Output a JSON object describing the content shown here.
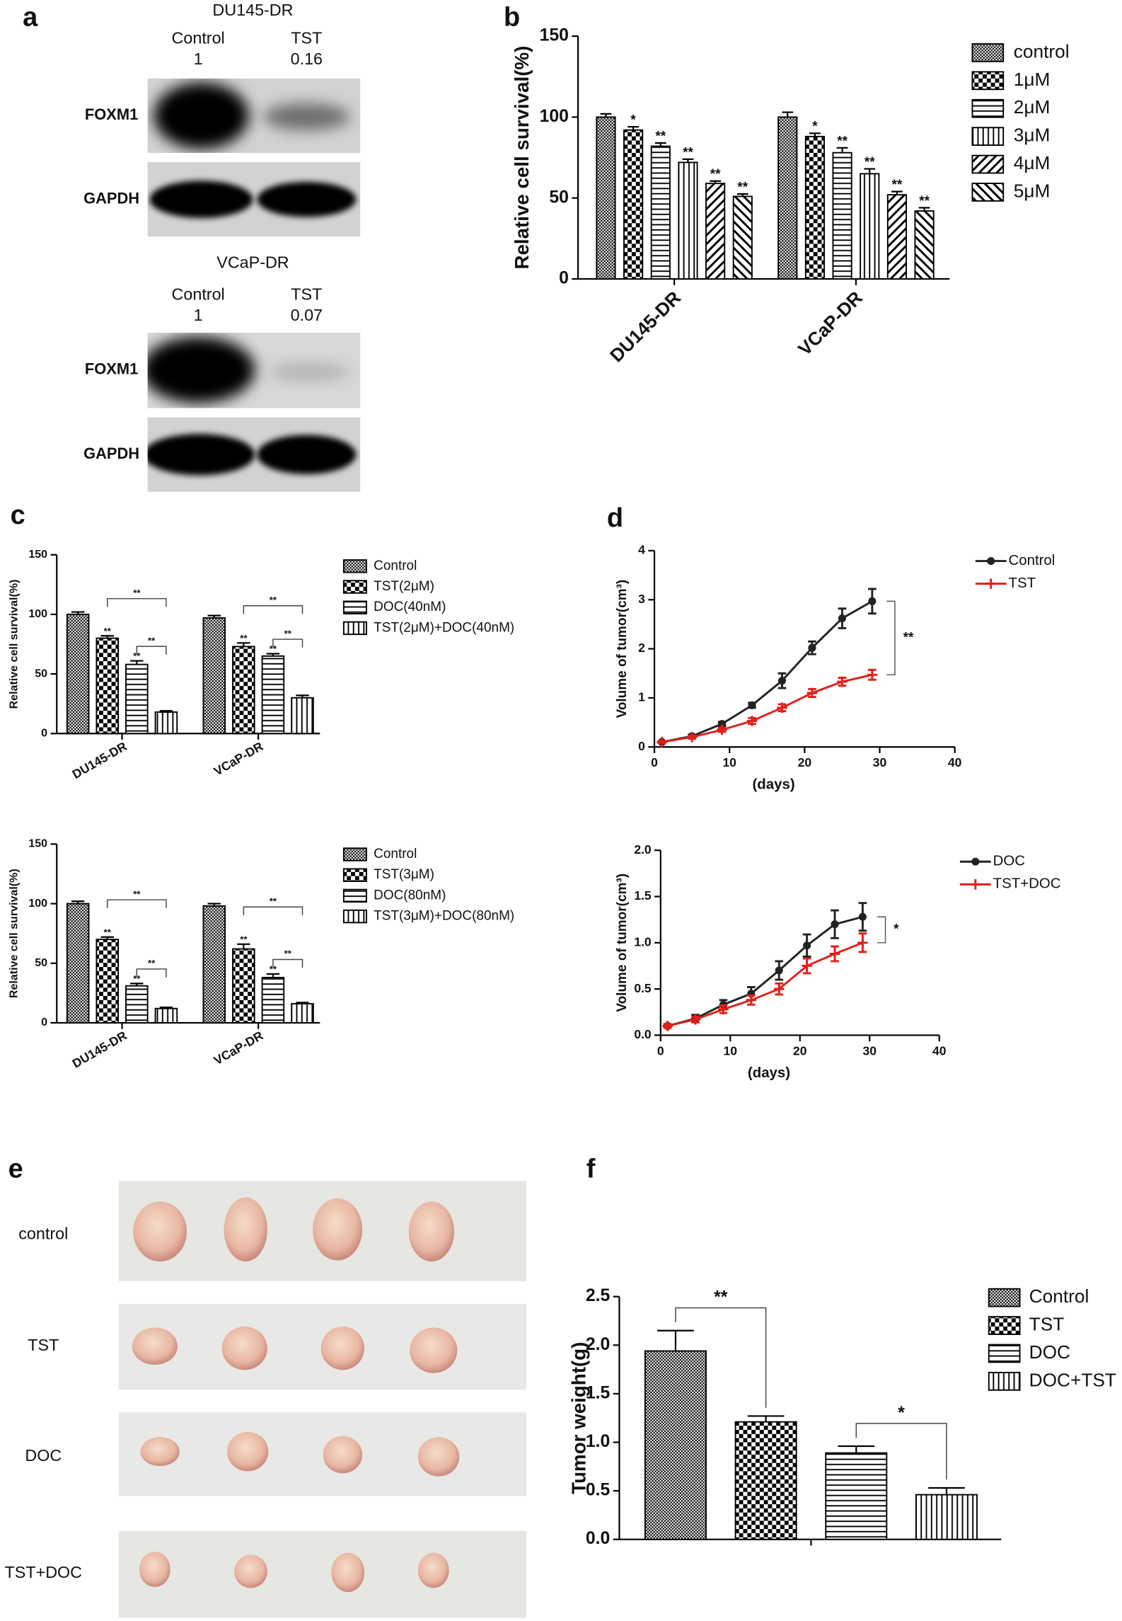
{
  "panel_labels": [
    "a",
    "b",
    "c",
    "d",
    "e",
    "f"
  ],
  "western_blots": [
    {
      "title": "DU145-DR",
      "lanes": [
        {
          "label": "Control",
          "ratio": 1
        },
        {
          "label": "TST",
          "ratio": 0.16
        }
      ],
      "rows": [
        "FOXM1",
        "GAPDH"
      ]
    },
    {
      "title": "VCaP-DR",
      "lanes": [
        {
          "label": "Control",
          "ratio": 1
        },
        {
          "label": "TST",
          "ratio": 0.07
        }
      ],
      "rows": [
        "FOXM1",
        "GAPDH"
      ]
    }
  ],
  "tumor_photos": {
    "rows": [
      "control",
      "TST",
      "DOC",
      "TST+DOC"
    ]
  },
  "chart_data": [
    {
      "type": "bar",
      "ylabel": "Relative cell survival(%)",
      "categories": [
        "DU145-DR",
        "VCaP-DR"
      ],
      "ylim": [
        0,
        150
      ],
      "yticks": [
        0,
        50,
        100,
        150
      ],
      "legend": "right",
      "series": [
        {
          "name": "control",
          "color": "#000000",
          "hatch": "dense",
          "values": [
            100,
            100
          ],
          "errors": [
            2,
            3
          ],
          "significance": [
            null,
            null
          ]
        },
        {
          "name": "1μM",
          "color": "#000000",
          "hatch": "checker",
          "values": [
            92,
            88
          ],
          "errors": [
            2,
            2
          ],
          "significance": [
            "*",
            "*"
          ]
        },
        {
          "name": "2μM",
          "color": "#000000",
          "hatch": "horizontal",
          "values": [
            82,
            78
          ],
          "errors": [
            2,
            3
          ],
          "significance": [
            "**",
            "**"
          ]
        },
        {
          "name": "3μM",
          "color": "#000000",
          "hatch": "vertical",
          "values": [
            72,
            65
          ],
          "errors": [
            2,
            3
          ],
          "significance": [
            "**",
            "**"
          ]
        },
        {
          "name": "4μM",
          "color": "#000000",
          "hatch": "diagonal",
          "values": [
            59,
            52
          ],
          "errors": [
            1.5,
            2
          ],
          "significance": [
            "**",
            "**"
          ]
        },
        {
          "name": "5μM",
          "color": "#000000",
          "hatch": "back-diagonal",
          "values": [
            51,
            42
          ],
          "errors": [
            1.5,
            2
          ],
          "significance": [
            "**",
            "**"
          ]
        }
      ]
    },
    {
      "type": "bar",
      "ylabel": "Relative cell survival(%)",
      "categories": [
        "DU145-DR",
        "VCaP-DR"
      ],
      "ylim": [
        0,
        150
      ],
      "yticks": [
        0,
        50,
        100,
        150
      ],
      "legend": "right",
      "series": [
        {
          "name": "Control",
          "color": "#000000",
          "hatch": "dense",
          "values": [
            100,
            97
          ],
          "errors": [
            2,
            2
          ],
          "significance": [
            null,
            null
          ]
        },
        {
          "name": "TST(2μM)",
          "color": "#000000",
          "hatch": "checker",
          "values": [
            80,
            73
          ],
          "errors": [
            2,
            3
          ],
          "significance": [
            "**",
            "**"
          ]
        },
        {
          "name": "DOC(40nM)",
          "color": "#000000",
          "hatch": "horizontal",
          "values": [
            58,
            65
          ],
          "errors": [
            3,
            2
          ],
          "significance": [
            "**",
            "**"
          ]
        },
        {
          "name": "TST(2μM)+DOC(40nM)",
          "color": "#000000",
          "hatch": "vertical",
          "values": [
            18,
            30
          ],
          "errors": [
            1,
            2
          ],
          "significance": [
            null,
            null
          ]
        }
      ],
      "brackets": [
        {
          "category": 0,
          "series": [
            1,
            3
          ],
          "label": "**"
        },
        {
          "category": 0,
          "series": [
            2,
            3
          ],
          "label": "**"
        },
        {
          "category": 1,
          "series": [
            1,
            3
          ],
          "label": "**"
        },
        {
          "category": 1,
          "series": [
            2,
            3
          ],
          "label": "**"
        }
      ]
    },
    {
      "type": "bar",
      "ylabel": "Relative cell survival(%)",
      "categories": [
        "DU145-DR",
        "VCaP-DR"
      ],
      "ylim": [
        0,
        150
      ],
      "yticks": [
        0,
        50,
        100,
        150
      ],
      "legend": "right",
      "series": [
        {
          "name": "Control",
          "color": "#000000",
          "hatch": "dense",
          "values": [
            100,
            98
          ],
          "errors": [
            2,
            2
          ],
          "significance": [
            null,
            null
          ]
        },
        {
          "name": "TST(3μM)",
          "color": "#000000",
          "hatch": "checker",
          "values": [
            70,
            62
          ],
          "errors": [
            2,
            4
          ],
          "significance": [
            "**",
            "**"
          ]
        },
        {
          "name": "DOC(80nM)",
          "color": "#000000",
          "hatch": "horizontal",
          "values": [
            31,
            38
          ],
          "errors": [
            2,
            3
          ],
          "significance": [
            "**",
            "**"
          ]
        },
        {
          "name": "TST(3μM)+DOC(80nM)",
          "color": "#000000",
          "hatch": "vertical",
          "values": [
            12,
            16
          ],
          "errors": [
            1,
            1
          ],
          "significance": [
            null,
            null
          ]
        }
      ],
      "brackets": [
        {
          "category": 0,
          "series": [
            1,
            3
          ],
          "label": "**"
        },
        {
          "category": 0,
          "series": [
            2,
            3
          ],
          "label": "**"
        },
        {
          "category": 1,
          "series": [
            1,
            3
          ],
          "label": "**"
        },
        {
          "category": 1,
          "series": [
            2,
            3
          ],
          "label": "**"
        }
      ]
    },
    {
      "type": "line",
      "xlabel": "(days)",
      "ylabel": "Volume of tumor(cm³)",
      "x": [
        1,
        5,
        9,
        13,
        17,
        21,
        25,
        29
      ],
      "xlim": [
        0,
        40
      ],
      "xticks": [
        0,
        10,
        20,
        30,
        40
      ],
      "ylim": [
        0,
        4
      ],
      "yticks": [
        0,
        1,
        2,
        3,
        4
      ],
      "legend": "right",
      "series": [
        {
          "name": "Control",
          "color": "#222222",
          "marker": "circle",
          "values": [
            0.1,
            0.22,
            0.47,
            0.85,
            1.35,
            2.02,
            2.62,
            2.97
          ],
          "errors": [
            0.02,
            0.03,
            0.04,
            0.05,
            0.15,
            0.13,
            0.2,
            0.25
          ]
        },
        {
          "name": "TST",
          "color": "#e0201b",
          "marker": "plus",
          "values": [
            0.1,
            0.2,
            0.35,
            0.53,
            0.8,
            1.1,
            1.33,
            1.47
          ],
          "errors": [
            0.02,
            0.03,
            0.04,
            0.06,
            0.07,
            0.08,
            0.08,
            0.1
          ]
        }
      ],
      "brackets": [
        {
          "series": [
            0,
            1
          ],
          "label": "**"
        }
      ]
    },
    {
      "type": "line",
      "xlabel": "(days)",
      "ylabel": "Volume of tumor(cm³)",
      "x": [
        1,
        5,
        9,
        13,
        17,
        21,
        25,
        29
      ],
      "xlim": [
        0,
        40
      ],
      "xticks": [
        0,
        10,
        20,
        30,
        40
      ],
      "ylim": [
        0,
        2
      ],
      "yticks": [
        {
          "value": 0,
          "label": "0.0"
        },
        0.5,
        {
          "value": 1,
          "label": "1.0"
        },
        1.5,
        {
          "value": 2,
          "label": "2.0"
        }
      ],
      "legend": "right",
      "series": [
        {
          "name": "DOC",
          "color": "#222222",
          "marker": "circle",
          "values": [
            0.1,
            0.18,
            0.33,
            0.45,
            0.7,
            0.97,
            1.2,
            1.28
          ],
          "errors": [
            0.02,
            0.04,
            0.05,
            0.07,
            0.1,
            0.12,
            0.15,
            0.15
          ]
        },
        {
          "name": "TST+DOC",
          "color": "#e0201b",
          "marker": "plus",
          "values": [
            0.1,
            0.17,
            0.28,
            0.38,
            0.5,
            0.75,
            0.88,
            1.0
          ],
          "errors": [
            0.02,
            0.03,
            0.04,
            0.05,
            0.06,
            0.08,
            0.08,
            0.1
          ]
        }
      ],
      "brackets": [
        {
          "series": [
            0,
            1
          ],
          "label": "*"
        }
      ]
    },
    {
      "type": "bar",
      "ylabel": "Tumor weight(g)",
      "ylim": [
        0,
        2.5
      ],
      "yticks": [
        {
          "value": 0,
          "label": "0.0"
        },
        0.5,
        {
          "value": 1,
          "label": "1.0"
        },
        1.5,
        {
          "value": 2,
          "label": "2.0"
        },
        2.5
      ],
      "legend": "right",
      "series": [
        {
          "name": "Control",
          "color": "#000000",
          "hatch": "dense",
          "values": [
            1.94
          ],
          "errors": [
            0.21
          ]
        },
        {
          "name": "TST",
          "color": "#000000",
          "hatch": "checker",
          "values": [
            1.21
          ],
          "errors": [
            0.06
          ]
        },
        {
          "name": "DOC",
          "color": "#000000",
          "hatch": "horizontal",
          "values": [
            0.89
          ],
          "errors": [
            0.07
          ]
        },
        {
          "name": "DOC+TST",
          "color": "#000000",
          "hatch": "vertical",
          "values": [
            0.46
          ],
          "errors": [
            0.07
          ]
        }
      ],
      "brackets": [
        {
          "category": 0,
          "series": [
            0,
            1
          ],
          "label": "**"
        },
        {
          "category": 0,
          "series": [
            2,
            3
          ],
          "label": "*"
        }
      ]
    }
  ]
}
